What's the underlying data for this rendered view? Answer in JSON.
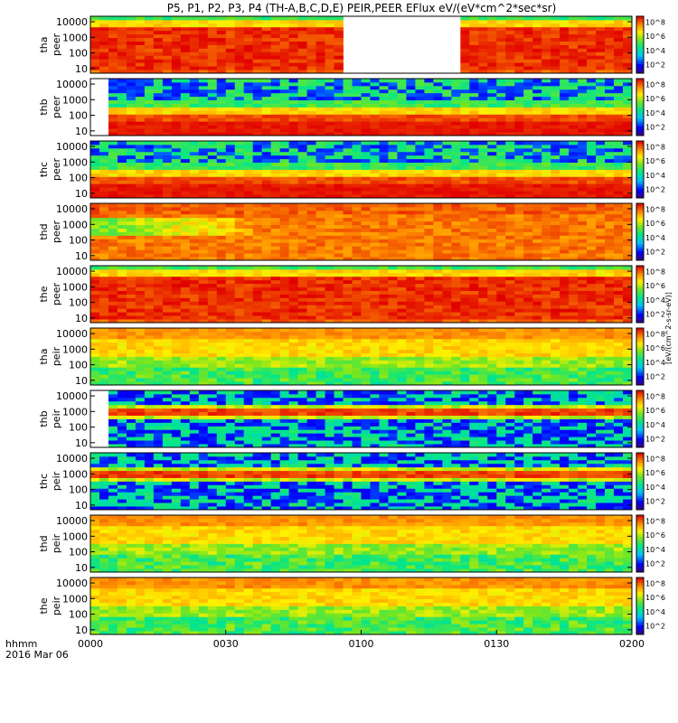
{
  "chart_data": {
    "type": "heatmap",
    "title": "P5, P1, P2, P3, P4 (TH-A,B,C,D,E) PEIR,PEER EFlux eV/(eV*cm^2*sec*sr)",
    "x_axis": {
      "label_line1": "hhmm",
      "label_line2": "2016 Mar 06",
      "ticks": [
        "0000",
        "0030",
        "0100",
        "0130",
        "0200"
      ],
      "range_minutes": [
        0,
        120
      ]
    },
    "y_ticks": [
      "10",
      "100",
      "1000",
      "10000"
    ],
    "y_scale": "log",
    "colorbar_label": "[eV/(cm^2-s-sr-eV)]",
    "colorbar_ticks": [
      "10^2",
      "10^4",
      "10^6",
      "10^8"
    ],
    "panels": [
      {
        "probe": "tha",
        "species": "peer",
        "ylabel_top": "tha",
        "ylabel_bottom": "peer",
        "theme": "electron-red",
        "gap_minutes": [
          55,
          83
        ]
      },
      {
        "probe": "thb",
        "species": "peer",
        "ylabel_top": "thb",
        "ylabel_bottom": "peer",
        "theme": "sparse-electron",
        "gap_minutes": [
          0,
          5
        ]
      },
      {
        "probe": "thc",
        "species": "peer",
        "ylabel_top": "thc",
        "ylabel_bottom": "peer",
        "theme": "sparse-electron",
        "gap_minutes": null
      },
      {
        "probe": "thd",
        "species": "peer",
        "ylabel_top": "thd",
        "ylabel_bottom": "peer",
        "theme": "electron-transition",
        "gap_minutes": null
      },
      {
        "probe": "the",
        "species": "peer",
        "ylabel_top": "the",
        "ylabel_bottom": "peer",
        "theme": "electron-red",
        "gap_minutes": null
      },
      {
        "probe": "tha",
        "species": "peir",
        "ylabel_top": "tha",
        "ylabel_bottom": "peir",
        "theme": "ion-yellow",
        "gap_minutes": null
      },
      {
        "probe": "thb",
        "species": "peir",
        "ylabel_top": "thb",
        "ylabel_bottom": "peir",
        "theme": "sparse-ion",
        "gap_minutes": [
          0,
          5
        ]
      },
      {
        "probe": "thc",
        "species": "peir",
        "ylabel_top": "thc",
        "ylabel_bottom": "peir",
        "theme": "sparse-ion",
        "gap_minutes": null
      },
      {
        "probe": "thd",
        "species": "peir",
        "ylabel_top": "thd",
        "ylabel_bottom": "peir",
        "theme": "ion-yellow",
        "gap_minutes": null
      },
      {
        "probe": "the",
        "species": "peir",
        "ylabel_top": "the",
        "ylabel_bottom": "peir",
        "theme": "ion-yellow",
        "gap_minutes": null
      }
    ]
  }
}
